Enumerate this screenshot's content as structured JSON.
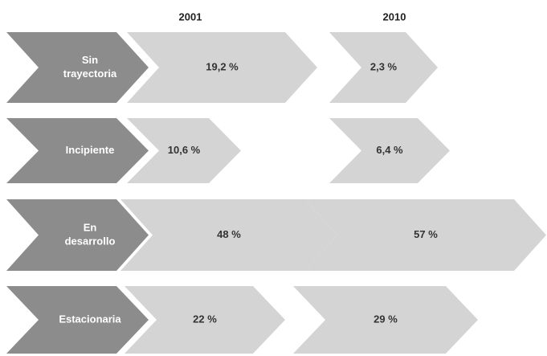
{
  "header": {
    "columns": [
      "2001",
      "2010"
    ]
  },
  "rows": [
    {
      "label": [
        "Sin",
        "trayectoria"
      ],
      "values": [
        "19,2 %",
        "2,3 %"
      ]
    },
    {
      "label": [
        "Incipiente"
      ],
      "values": [
        "10,6 %",
        "6,4 %"
      ]
    },
    {
      "label": [
        "En",
        "desarrollo"
      ],
      "values": [
        "48 %",
        "57 %"
      ]
    },
    {
      "label": [
        "Estacionaria"
      ],
      "values": [
        "22 %",
        "29 %"
      ]
    }
  ]
}
